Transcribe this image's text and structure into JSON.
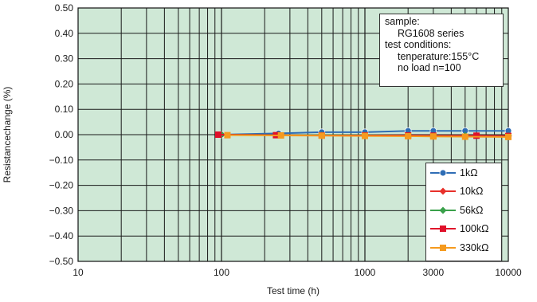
{
  "chart_data": {
    "type": "line",
    "title": "",
    "xlabel": "Test time (h)",
    "ylabel": "Resistancechange (%)",
    "x_scale": "log",
    "xlim": [
      10,
      10000
    ],
    "ylim": [
      -0.5,
      0.5
    ],
    "x_ticks": [
      10,
      100,
      1000,
      3000,
      10000
    ],
    "x_tick_labels": [
      "10",
      "100",
      "1000",
      "3000",
      "10000"
    ],
    "y_ticks": [
      0.5,
      0.4,
      0.3,
      0.2,
      0.1,
      0,
      -0.1,
      -0.2,
      -0.3,
      -0.4,
      -0.5
    ],
    "y_tick_labels": [
      "0.50",
      "0.40",
      "0.30",
      "0.20",
      "0.10",
      "0.00",
      "−0.10",
      "−0.20",
      "−0.30",
      "−0.40",
      "−0.50"
    ],
    "grid": true,
    "background": "#cfe8d6",
    "legend_position": "bottom-right",
    "series": [
      {
        "name": "1kΩ",
        "color": "#2f6db5",
        "marker": "circle",
        "x": [
          100,
          250,
          500,
          1000,
          2000,
          3000,
          5000,
          10000
        ],
        "y": [
          0.0,
          0.005,
          0.01,
          0.01,
          0.015,
          0.015,
          0.015,
          0.015
        ]
      },
      {
        "name": "10kΩ",
        "color": "#e8302a",
        "marker": "diamond",
        "x": [
          100,
          250,
          500,
          1000,
          2000,
          3000,
          5000,
          10000
        ],
        "y": [
          0.0,
          -0.002,
          -0.003,
          -0.003,
          -0.005,
          -0.005,
          -0.005,
          -0.006
        ]
      },
      {
        "name": "56kΩ",
        "color": "#3aa04a",
        "marker": "diamond",
        "x": [
          100,
          250,
          500,
          1000,
          2000,
          3000,
          5000,
          10000
        ],
        "y": [
          0.0,
          -0.001,
          -0.002,
          -0.002,
          -0.003,
          -0.003,
          -0.003,
          -0.004
        ]
      },
      {
        "name": "100kΩ",
        "color": "#e0102a",
        "marker": "square",
        "x": [
          95,
          240,
          500,
          1000,
          2000,
          3000,
          6000,
          10000
        ],
        "y": [
          0.0,
          -0.002,
          -0.003,
          -0.003,
          -0.003,
          -0.004,
          -0.004,
          -0.005
        ]
      },
      {
        "name": "330kΩ",
        "color": "#f59a1e",
        "marker": "square",
        "x": [
          110,
          260,
          500,
          1000,
          2000,
          3000,
          5000,
          10000
        ],
        "y": [
          -0.002,
          -0.003,
          -0.004,
          -0.005,
          -0.006,
          -0.007,
          -0.008,
          -0.009
        ]
      }
    ]
  },
  "annotation": {
    "lines": [
      "sample:",
      "RG1608 series",
      "test conditions:",
      "tenperature:155°C",
      "no load   n=100"
    ]
  }
}
